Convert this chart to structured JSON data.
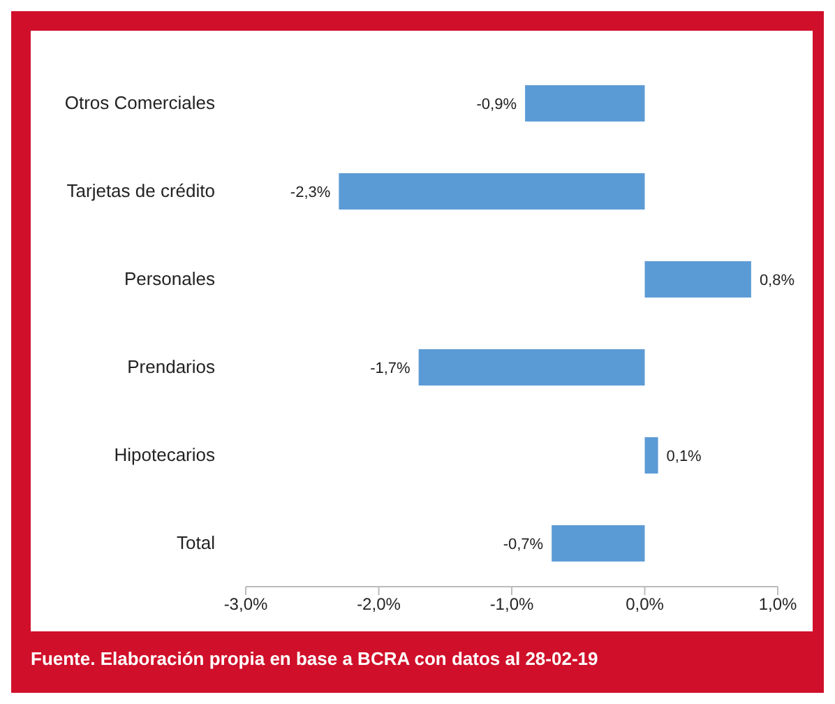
{
  "chart_data": {
    "type": "bar",
    "orientation": "horizontal",
    "categories": [
      "Otros Comerciales",
      "Tarjetas de crédito",
      "Personales",
      "Prendarios",
      "Hipotecarios",
      "Total"
    ],
    "values": [
      -0.9,
      -2.3,
      0.8,
      -1.7,
      0.1,
      -0.7
    ],
    "value_labels": [
      "-0,9%",
      "-2,3%",
      "0,8%",
      "-1,7%",
      "0,1%",
      "-0,7%"
    ],
    "color": "#5b9bd5",
    "xlim": [
      -3,
      1
    ],
    "xticks": [
      {
        "value": -3,
        "label": "-3,0%"
      },
      {
        "value": -2,
        "label": "-2,0%"
      },
      {
        "value": -1,
        "label": "-1,0%"
      },
      {
        "value": 0,
        "label": "0,0%"
      },
      {
        "value": 1,
        "label": "1,0%"
      }
    ],
    "grid": false,
    "legend": false,
    "annotations": [
      "Fuente. Elaboración propia en base a BCRA con datos al 28-02-19"
    ]
  }
}
